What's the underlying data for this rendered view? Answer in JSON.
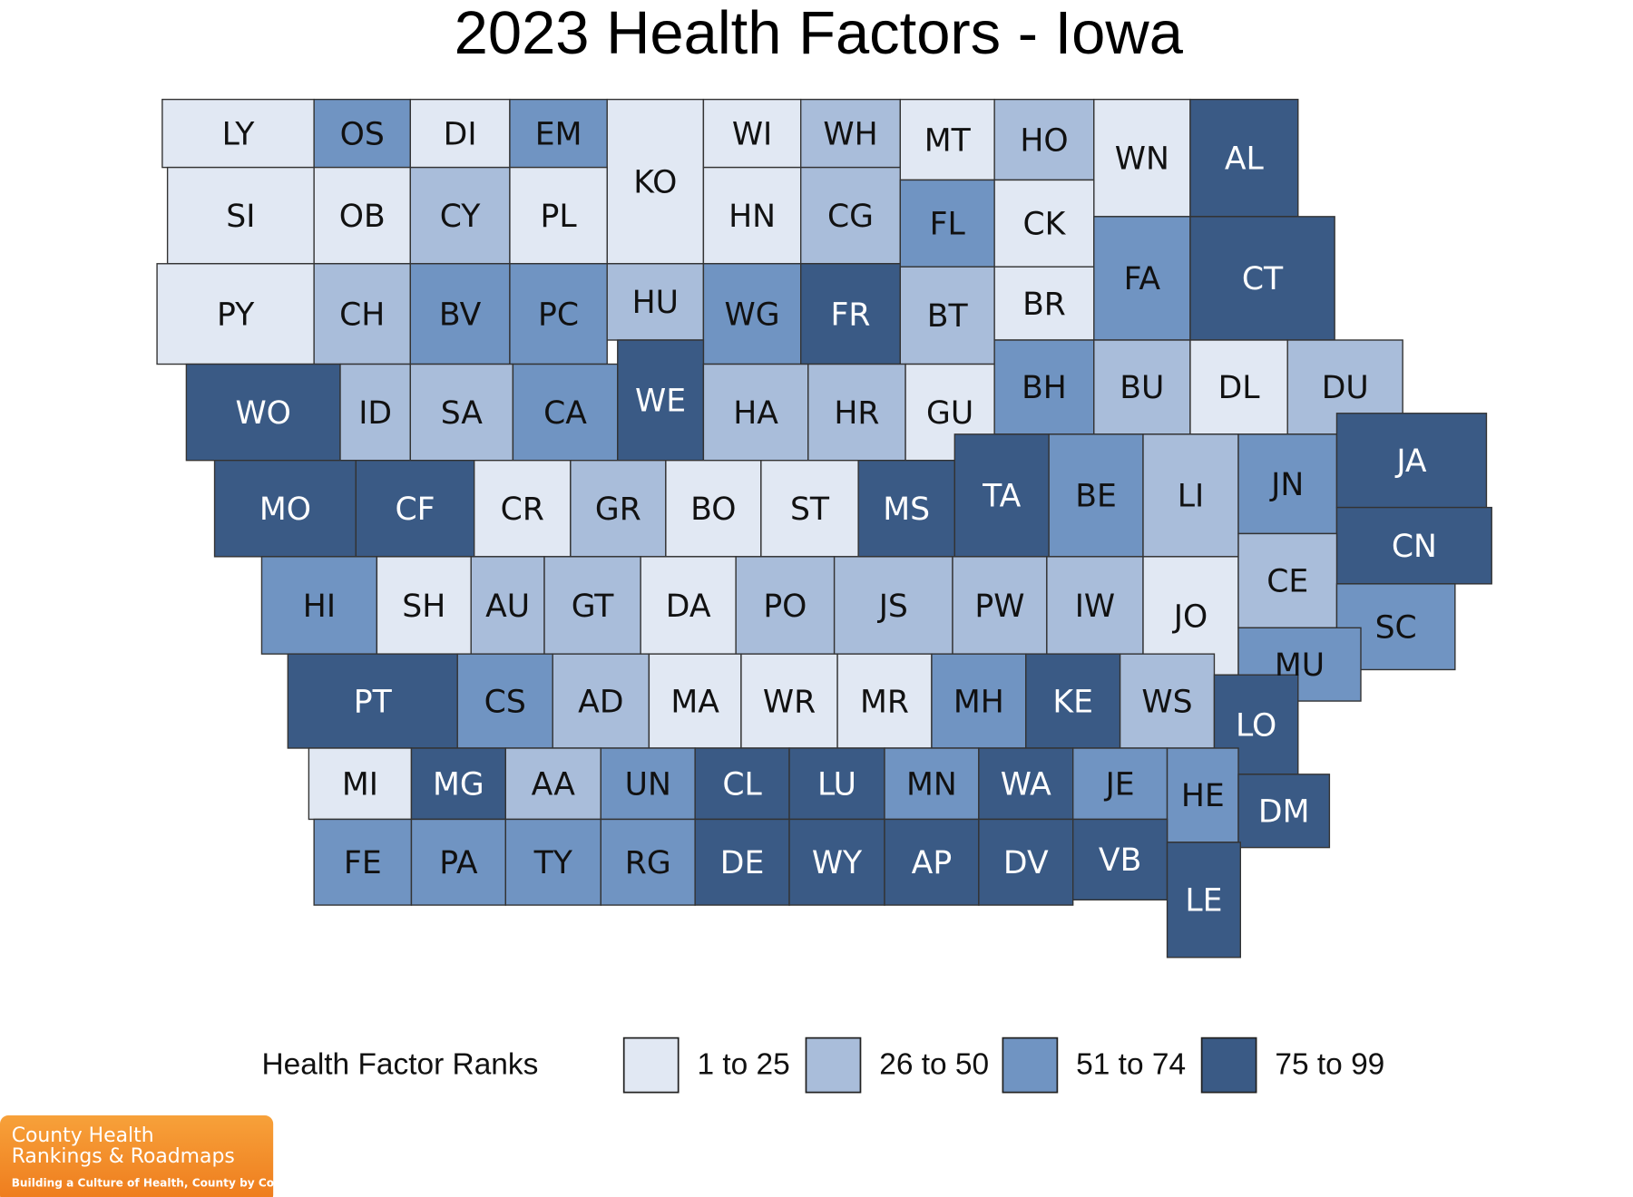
{
  "title": "2023 Health Factors - Iowa",
  "counties": [
    {
      "abbr": "LY",
      "color": "#e1e8f3"
    },
    {
      "abbr": "OS",
      "color": "#7094c2"
    },
    {
      "abbr": "DI",
      "color": "#e1e8f3"
    },
    {
      "abbr": "EM",
      "color": "#7094c2"
    },
    {
      "abbr": "KO",
      "color": "#e1e8f3"
    },
    {
      "abbr": "WI",
      "color": "#e1e8f3"
    },
    {
      "abbr": "WH",
      "color": "#a9bdda"
    },
    {
      "abbr": "MT",
      "color": "#e1e8f3"
    },
    {
      "abbr": "HO",
      "color": "#a9bdda"
    },
    {
      "abbr": "WN",
      "color": "#e1e8f3"
    },
    {
      "abbr": "AL",
      "color": "#3a5a85"
    },
    {
      "abbr": "SI",
      "color": "#e1e8f3"
    },
    {
      "abbr": "OB",
      "color": "#e1e8f3"
    },
    {
      "abbr": "CY",
      "color": "#a9bdda"
    },
    {
      "abbr": "PL",
      "color": "#e1e8f3"
    },
    {
      "abbr": "HN",
      "color": "#e1e8f3"
    },
    {
      "abbr": "CG",
      "color": "#a9bdda"
    },
    {
      "abbr": "FL",
      "color": "#7094c2"
    },
    {
      "abbr": "CK",
      "color": "#e1e8f3"
    },
    {
      "abbr": "FA",
      "color": "#7094c2"
    },
    {
      "abbr": "CT",
      "color": "#3a5a85"
    },
    {
      "abbr": "PY",
      "color": "#e1e8f3"
    },
    {
      "abbr": "CH",
      "color": "#a9bdda"
    },
    {
      "abbr": "BV",
      "color": "#7094c2"
    },
    {
      "abbr": "PC",
      "color": "#7094c2"
    },
    {
      "abbr": "HU",
      "color": "#a9bdda"
    },
    {
      "abbr": "WG",
      "color": "#7094c2"
    },
    {
      "abbr": "FR",
      "color": "#3a5a85"
    },
    {
      "abbr": "BT",
      "color": "#a9bdda"
    },
    {
      "abbr": "BR",
      "color": "#e1e8f3"
    },
    {
      "abbr": "WO",
      "color": "#3a5a85"
    },
    {
      "abbr": "ID",
      "color": "#a9bdda"
    },
    {
      "abbr": "SA",
      "color": "#a9bdda"
    },
    {
      "abbr": "CA",
      "color": "#7094c2"
    },
    {
      "abbr": "WE",
      "color": "#3a5a85"
    },
    {
      "abbr": "HA",
      "color": "#a9bdda"
    },
    {
      "abbr": "HR",
      "color": "#a9bdda"
    },
    {
      "abbr": "GU",
      "color": "#e1e8f3"
    },
    {
      "abbr": "BH",
      "color": "#7094c2"
    },
    {
      "abbr": "BU",
      "color": "#a9bdda"
    },
    {
      "abbr": "DL",
      "color": "#e1e8f3"
    },
    {
      "abbr": "DU",
      "color": "#a9bdda"
    },
    {
      "abbr": "MO",
      "color": "#3a5a85"
    },
    {
      "abbr": "CF",
      "color": "#3a5a85"
    },
    {
      "abbr": "CR",
      "color": "#e1e8f3"
    },
    {
      "abbr": "GR",
      "color": "#a9bdda"
    },
    {
      "abbr": "BO",
      "color": "#e1e8f3"
    },
    {
      "abbr": "ST",
      "color": "#e1e8f3"
    },
    {
      "abbr": "MS",
      "color": "#3a5a85"
    },
    {
      "abbr": "TA",
      "color": "#3a5a85"
    },
    {
      "abbr": "BE",
      "color": "#7094c2"
    },
    {
      "abbr": "LI",
      "color": "#a9bdda"
    },
    {
      "abbr": "JN",
      "color": "#7094c2"
    },
    {
      "abbr": "JA",
      "color": "#3a5a85"
    },
    {
      "abbr": "CN",
      "color": "#3a5a85"
    },
    {
      "abbr": "HI",
      "color": "#7094c2"
    },
    {
      "abbr": "SH",
      "color": "#e1e8f3"
    },
    {
      "abbr": "AU",
      "color": "#a9bdda"
    },
    {
      "abbr": "GT",
      "color": "#a9bdda"
    },
    {
      "abbr": "DA",
      "color": "#e1e8f3"
    },
    {
      "abbr": "PO",
      "color": "#a9bdda"
    },
    {
      "abbr": "JS",
      "color": "#a9bdda"
    },
    {
      "abbr": "PW",
      "color": "#a9bdda"
    },
    {
      "abbr": "IW",
      "color": "#a9bdda"
    },
    {
      "abbr": "JO",
      "color": "#e1e8f3"
    },
    {
      "abbr": "CE",
      "color": "#a9bdda"
    },
    {
      "abbr": "SC",
      "color": "#7094c2"
    },
    {
      "abbr": "PT",
      "color": "#3a5a85"
    },
    {
      "abbr": "CS",
      "color": "#7094c2"
    },
    {
      "abbr": "AD",
      "color": "#a9bdda"
    },
    {
      "abbr": "MA",
      "color": "#e1e8f3"
    },
    {
      "abbr": "WR",
      "color": "#e1e8f3"
    },
    {
      "abbr": "MR",
      "color": "#e1e8f3"
    },
    {
      "abbr": "MH",
      "color": "#7094c2"
    },
    {
      "abbr": "KE",
      "color": "#3a5a85"
    },
    {
      "abbr": "WS",
      "color": "#a9bdda"
    },
    {
      "abbr": "MU",
      "color": "#7094c2"
    },
    {
      "abbr": "LO",
      "color": "#3a5a85"
    },
    {
      "abbr": "MI",
      "color": "#e1e8f3"
    },
    {
      "abbr": "MG",
      "color": "#3a5a85"
    },
    {
      "abbr": "AA",
      "color": "#a9bdda"
    },
    {
      "abbr": "UN",
      "color": "#7094c2"
    },
    {
      "abbr": "CL",
      "color": "#3a5a85"
    },
    {
      "abbr": "LU",
      "color": "#3a5a85"
    },
    {
      "abbr": "MN",
      "color": "#7094c2"
    },
    {
      "abbr": "WA",
      "color": "#3a5a85"
    },
    {
      "abbr": "JE",
      "color": "#7094c2"
    },
    {
      "abbr": "HE",
      "color": "#7094c2"
    },
    {
      "abbr": "DM",
      "color": "#3a5a85"
    },
    {
      "abbr": "FE",
      "color": "#7094c2"
    },
    {
      "abbr": "PA",
      "color": "#7094c2"
    },
    {
      "abbr": "TY",
      "color": "#7094c2"
    },
    {
      "abbr": "RG",
      "color": "#7094c2"
    },
    {
      "abbr": "DE",
      "color": "#3a5a85"
    },
    {
      "abbr": "WY",
      "color": "#3a5a85"
    },
    {
      "abbr": "AP",
      "color": "#3a5a85"
    },
    {
      "abbr": "DV",
      "color": "#3a5a85"
    },
    {
      "abbr": "VB",
      "color": "#3a5a85"
    },
    {
      "abbr": "LE",
      "color": "#3a5a85"
    }
  ],
  "legend": {
    "title": "Health Factor Ranks",
    "items": [
      {
        "label": "1 to 25",
        "color": "#e1e8f3"
      },
      {
        "label": "26 to 50",
        "color": "#a9bdda"
      },
      {
        "label": "51 to 74",
        "color": "#7094c2"
      },
      {
        "label": "75 to 99",
        "color": "#3a5a85"
      }
    ]
  },
  "logo": {
    "line1": "County Health",
    "line2": "Rankings & Roadmaps",
    "tagline": "Building a Culture of Health, County by County"
  }
}
